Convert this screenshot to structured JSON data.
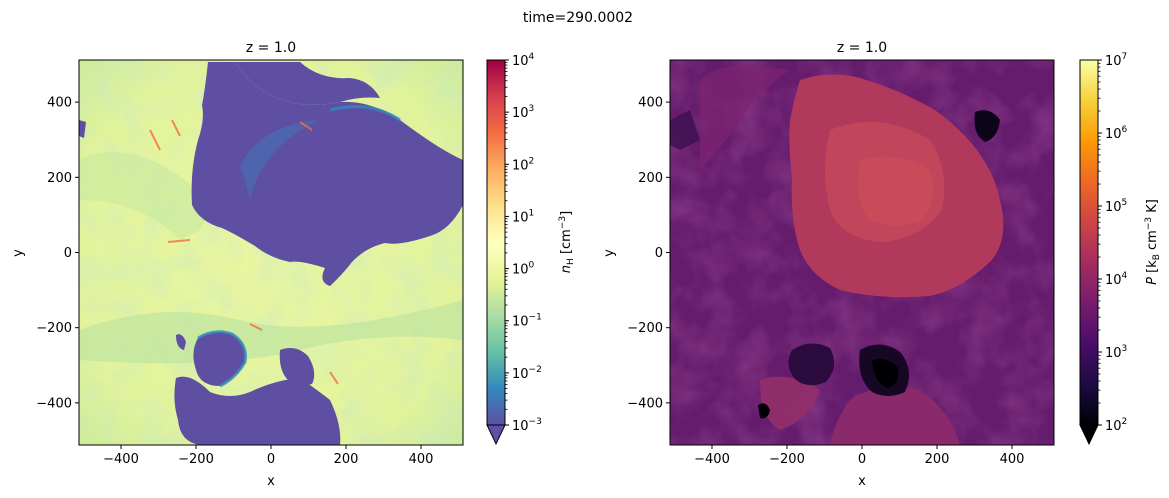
{
  "suptitle": "time=290.0002",
  "chart_data": [
    {
      "type": "heatmap",
      "title": "z = 1.0",
      "xlabel": "x",
      "ylabel": "y",
      "xlim": [
        -512,
        512
      ],
      "ylim": [
        -512,
        512
      ],
      "xticks": [
        -400,
        -200,
        0,
        200,
        400
      ],
      "yticks": [
        -400,
        -200,
        0,
        200,
        400
      ],
      "xtick_labels": [
        "−400",
        "−200",
        "0",
        "200",
        "400"
      ],
      "ytick_labels": [
        "−400",
        "−200",
        "0",
        "200",
        "400"
      ],
      "colormap": "Spectral_r",
      "colorbar": {
        "label": "n_H [cm^-3]",
        "label_main": "n",
        "label_sub": "H",
        "label_unit": " [cm",
        "label_exp": "−3",
        "label_end": "]",
        "scale": "log",
        "range": [
          0.001,
          10000
        ],
        "ticks": [
          {
            "base": "10",
            "exp": "4"
          },
          {
            "base": "10",
            "exp": "3"
          },
          {
            "base": "10",
            "exp": "2"
          },
          {
            "base": "10",
            "exp": "1"
          },
          {
            "base": "10",
            "exp": "0"
          },
          {
            "base": "10",
            "exp": "−1"
          },
          {
            "base": "10",
            "exp": "−2"
          },
          {
            "base": "10",
            "exp": "−3"
          }
        ],
        "extend": "min",
        "colors": [
          "#5e4fa2",
          "#3288bd",
          "#66c2a5",
          "#abdda4",
          "#e6f598",
          "#ffffbf",
          "#fee08b",
          "#fdae61",
          "#f46d43",
          "#d53e4f",
          "#9e0142"
        ]
      }
    },
    {
      "type": "heatmap",
      "title": "z = 1.0",
      "xlabel": "x",
      "ylabel": "y",
      "xlim": [
        -512,
        512
      ],
      "ylim": [
        -512,
        512
      ],
      "xticks": [
        -400,
        -200,
        0,
        200,
        400
      ],
      "yticks": [
        -400,
        -200,
        0,
        200,
        400
      ],
      "xtick_labels": [
        "−400",
        "−200",
        "0",
        "200",
        "400"
      ],
      "ytick_labels": [
        "−400",
        "−200",
        "0",
        "200",
        "400"
      ],
      "colormap": "inferno",
      "colorbar": {
        "label": "P [k_B cm^-3 K]",
        "label_main": "P",
        "label_unit": " [k",
        "label_sub": "B",
        "label_mid": " cm",
        "label_exp": "−3",
        "label_end": " K]",
        "scale": "log",
        "range": [
          100,
          10000000
        ],
        "ticks": [
          {
            "base": "10",
            "exp": "7"
          },
          {
            "base": "10",
            "exp": "6"
          },
          {
            "base": "10",
            "exp": "5"
          },
          {
            "base": "10",
            "exp": "4"
          },
          {
            "base": "10",
            "exp": "3"
          },
          {
            "base": "10",
            "exp": "2"
          }
        ],
        "extend": "min",
        "colors": [
          "#000004",
          "#1b0c41",
          "#4a0c6b",
          "#781c6d",
          "#a52c60",
          "#cf4446",
          "#ed6925",
          "#fb9b06",
          "#f7d13d",
          "#fcffa4"
        ]
      }
    }
  ]
}
